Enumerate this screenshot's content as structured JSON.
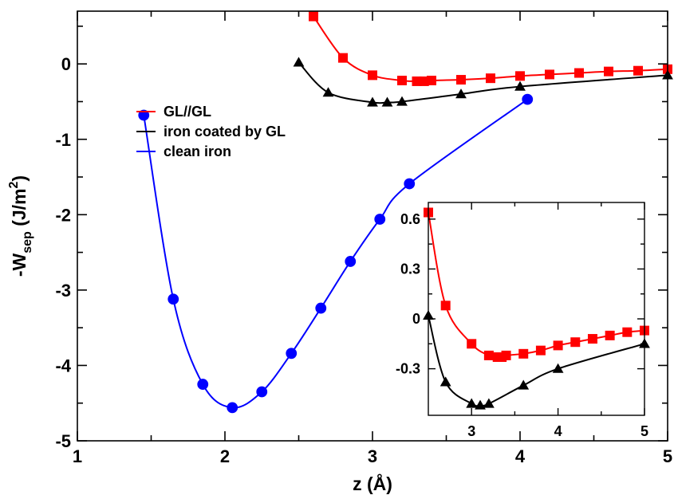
{
  "chart_data": [
    {
      "id": "main",
      "type": "line",
      "xlabel": "z (Å)",
      "ylabel": {
        "base": "-W",
        "sub": "sep",
        "unit_open": " (J/m",
        "sup": "2",
        "unit_close": ")"
      },
      "xlim": [
        1,
        5
      ],
      "ylim": [
        -5,
        0.7
      ],
      "xticks": [
        1,
        2,
        3,
        4,
        5
      ],
      "yticks": [
        -5,
        -4,
        -3,
        -2,
        -1,
        0
      ],
      "xtick_labels": [
        "1",
        "2",
        "3",
        "4",
        "5"
      ],
      "ytick_labels": [
        "-5",
        "-4",
        "-3",
        "-2",
        "-1",
        "0"
      ],
      "legend_position": "left-center",
      "series": [
        {
          "name": "GL//GL",
          "color": "#ff0000",
          "marker": "square",
          "points": [
            [
              2.6,
              0.63
            ],
            [
              2.8,
              0.08
            ],
            [
              3.0,
              -0.15
            ],
            [
              3.2,
              -0.22
            ],
            [
              3.3,
              -0.23
            ],
            [
              3.35,
              -0.23
            ],
            [
              3.4,
              -0.22
            ],
            [
              3.6,
              -0.21
            ],
            [
              3.8,
              -0.19
            ],
            [
              4.0,
              -0.16
            ],
            [
              4.2,
              -0.14
            ],
            [
              4.4,
              -0.12
            ],
            [
              4.6,
              -0.1
            ],
            [
              4.8,
              -0.09
            ],
            [
              5.0,
              -0.07
            ]
          ]
        },
        {
          "name": "iron coated by GL",
          "color": "#000000",
          "marker": "triangle",
          "points": [
            [
              2.5,
              0.02
            ],
            [
              2.7,
              -0.38
            ],
            [
              3.0,
              -0.51
            ],
            [
              3.1,
              -0.51
            ],
            [
              3.2,
              -0.5
            ],
            [
              3.6,
              -0.4
            ],
            [
              4.0,
              -0.3
            ],
            [
              5.0,
              -0.15
            ]
          ]
        },
        {
          "name": "clean iron",
          "color": "#0000ff",
          "marker": "circle",
          "points": [
            [
              1.45,
              -0.68
            ],
            [
              1.65,
              -3.12
            ],
            [
              1.85,
              -4.25
            ],
            [
              2.05,
              -4.56
            ],
            [
              2.25,
              -4.35
            ],
            [
              2.45,
              -3.84
            ],
            [
              2.65,
              -3.24
            ],
            [
              2.85,
              -2.62
            ],
            [
              3.05,
              -2.06
            ],
            [
              3.25,
              -1.59
            ],
            [
              4.05,
              -0.47
            ]
          ]
        }
      ]
    },
    {
      "id": "inset",
      "type": "line",
      "xlim": [
        2.5,
        5
      ],
      "ylim": [
        -0.58,
        0.7
      ],
      "xticks": [
        3,
        4,
        5
      ],
      "yticks": [
        -0.3,
        0,
        0.3,
        0.6
      ],
      "xtick_labels": [
        "3",
        "4",
        "5"
      ],
      "ytick_labels": [
        "-0.3",
        "0",
        "0.3",
        "0.6"
      ],
      "series": [
        {
          "color": "#ff0000",
          "marker": "square",
          "points": [
            [
              2.5,
              0.64
            ],
            [
              2.7,
              0.08
            ],
            [
              3.0,
              -0.15
            ],
            [
              3.2,
              -0.22
            ],
            [
              3.3,
              -0.23
            ],
            [
              3.35,
              -0.23
            ],
            [
              3.4,
              -0.22
            ],
            [
              3.6,
              -0.21
            ],
            [
              3.8,
              -0.19
            ],
            [
              4.0,
              -0.16
            ],
            [
              4.2,
              -0.14
            ],
            [
              4.4,
              -0.12
            ],
            [
              4.6,
              -0.1
            ],
            [
              4.8,
              -0.08
            ],
            [
              5.0,
              -0.07
            ]
          ]
        },
        {
          "color": "#000000",
          "marker": "triangle",
          "points": [
            [
              2.5,
              0.02
            ],
            [
              2.7,
              -0.38
            ],
            [
              3.0,
              -0.51
            ],
            [
              3.1,
              -0.52
            ],
            [
              3.2,
              -0.51
            ],
            [
              3.6,
              -0.4
            ],
            [
              4.0,
              -0.3
            ],
            [
              5.0,
              -0.15
            ]
          ]
        }
      ]
    }
  ]
}
